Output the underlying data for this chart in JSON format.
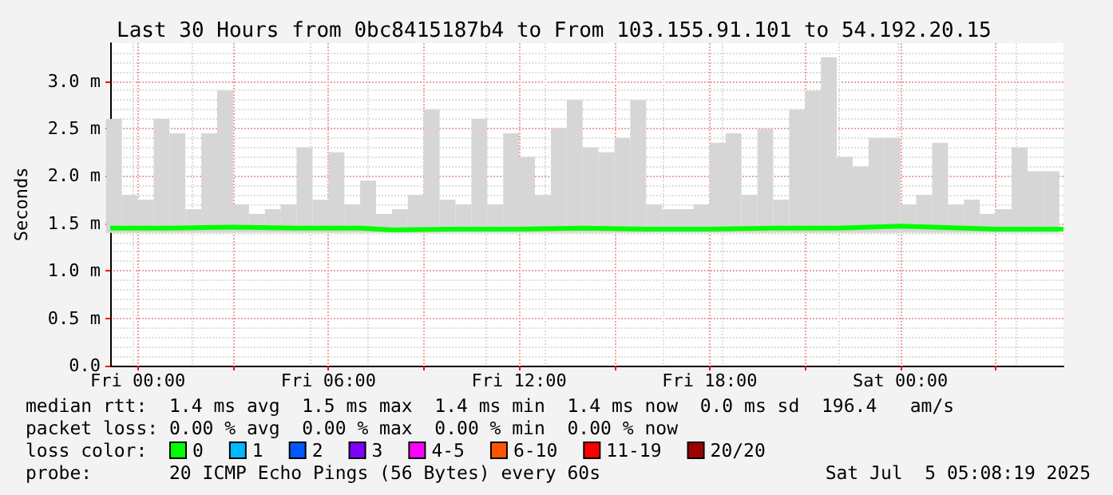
{
  "chart_data": {
    "type": "line",
    "title": "Last 30 Hours from 0bc8415187b4 to From 103.155.91.101 to 54.192.20.15",
    "ylabel": "Seconds",
    "xlim": [
      "2025-07-03T23:08",
      "2025-07-05T05:08"
    ],
    "xticks": [
      {
        "value": "2025-07-04T00:00",
        "label": "Fri 00:00"
      },
      {
        "value": "2025-07-04T03:00",
        "label": null
      },
      {
        "value": "2025-07-04T06:00",
        "label": "Fri 06:00"
      },
      {
        "value": "2025-07-04T09:00",
        "label": null
      },
      {
        "value": "2025-07-04T12:00",
        "label": "Fri 12:00"
      },
      {
        "value": "2025-07-04T15:00",
        "label": null
      },
      {
        "value": "2025-07-04T18:00",
        "label": "Fri 18:00"
      },
      {
        "value": "2025-07-04T21:00",
        "label": null
      },
      {
        "value": "2025-07-05T00:00",
        "label": "Sat 00:00"
      },
      {
        "value": "2025-07-05T03:00",
        "label": null
      }
    ],
    "ylim": [
      0,
      3.4
    ],
    "yticks": [
      {
        "value": 0,
        "label": "0.0"
      },
      {
        "value": 0.5,
        "label": "0.5 m"
      },
      {
        "value": 1,
        "label": "1.0 m"
      },
      {
        "value": 1.5,
        "label": "1.5 m"
      },
      {
        "value": 2,
        "label": "2.0 m"
      },
      {
        "value": 2.5,
        "label": "2.5 m"
      },
      {
        "value": 3,
        "label": "3.0 m"
      }
    ],
    "grid": true,
    "legend": "bottom left",
    "series": [
      {
        "type": "bar",
        "color": "#d6d6d6",
        "x": [
          "2025-07-03T23:15",
          "2025-07-03T23:45",
          "2025-07-04T00:15",
          "2025-07-04T00:45",
          "2025-07-04T01:15",
          "2025-07-04T01:45",
          "2025-07-04T02:15",
          "2025-07-04T02:45",
          "2025-07-04T03:15",
          "2025-07-04T03:45",
          "2025-07-04T04:15",
          "2025-07-04T04:45",
          "2025-07-04T05:15",
          "2025-07-04T05:45",
          "2025-07-04T06:15",
          "2025-07-04T06:45",
          "2025-07-04T07:15",
          "2025-07-04T07:45",
          "2025-07-04T08:15",
          "2025-07-04T08:45",
          "2025-07-04T09:15",
          "2025-07-04T09:45",
          "2025-07-04T10:15",
          "2025-07-04T10:45",
          "2025-07-04T11:15",
          "2025-07-04T11:45",
          "2025-07-04T12:15",
          "2025-07-04T12:45",
          "2025-07-04T13:15",
          "2025-07-04T13:45",
          "2025-07-04T14:15",
          "2025-07-04T14:45",
          "2025-07-04T15:15",
          "2025-07-04T15:45",
          "2025-07-04T16:15",
          "2025-07-04T16:45",
          "2025-07-04T17:15",
          "2025-07-04T17:45",
          "2025-07-04T18:15",
          "2025-07-04T18:45",
          "2025-07-04T19:15",
          "2025-07-04T19:45",
          "2025-07-04T20:15",
          "2025-07-04T20:45",
          "2025-07-04T21:15",
          "2025-07-04T21:45",
          "2025-07-04T22:15",
          "2025-07-04T22:45",
          "2025-07-04T23:15",
          "2025-07-04T23:45",
          "2025-07-05T00:15",
          "2025-07-05T00:45",
          "2025-07-05T01:15",
          "2025-07-05T01:45",
          "2025-07-05T02:15",
          "2025-07-05T02:45",
          "2025-07-05T03:15",
          "2025-07-05T03:45",
          "2025-07-05T04:15",
          "2025-07-05T04:45"
        ],
        "base": [
          1.4,
          1.4,
          1.4,
          1.4,
          1.4,
          1.4,
          1.4,
          1.4,
          1.4,
          1.4,
          1.4,
          1.4,
          1.4,
          1.4,
          1.4,
          1.4,
          1.4,
          1.4,
          1.4,
          1.4,
          1.4,
          1.4,
          1.4,
          1.4,
          1.4,
          1.4,
          1.4,
          1.4,
          1.4,
          1.4,
          1.4,
          1.4,
          1.4,
          1.4,
          1.4,
          1.4,
          1.4,
          1.4,
          1.4,
          1.4,
          1.4,
          1.4,
          1.4,
          1.4,
          1.4,
          1.4,
          1.4,
          1.4,
          1.4,
          1.4,
          1.4,
          1.4,
          1.4,
          1.4,
          1.4,
          1.4,
          1.4,
          1.4,
          1.4,
          1.4
        ],
        "values": [
          1.2,
          0.4,
          0.35,
          1.2,
          1.05,
          0.25,
          1.05,
          1.5,
          0.3,
          0.2,
          0.25,
          0.3,
          0.9,
          0.35,
          0.85,
          0.3,
          0.55,
          0.2,
          0.25,
          0.4,
          1.3,
          0.35,
          0.3,
          1.2,
          0.3,
          1.05,
          0.8,
          0.4,
          1.1,
          1.4,
          0.9,
          0.85,
          1.0,
          1.4,
          0.3,
          0.25,
          0.25,
          0.3,
          0.95,
          1.05,
          0.4,
          1.1,
          0.35,
          1.3,
          1.5,
          1.85,
          0.8,
          0.7,
          1.0,
          1.0,
          0.3,
          0.4,
          0.95,
          0.3,
          0.35,
          0.2,
          0.25,
          0.9,
          0.65,
          0.65
        ]
      },
      {
        "name": "0",
        "color": "#00ff00",
        "x": [
          "2025-07-03T23:08",
          "2025-07-04T01:00",
          "2025-07-04T03:00",
          "2025-07-04T05:00",
          "2025-07-04T07:00",
          "2025-07-04T08:00",
          "2025-07-04T10:00",
          "2025-07-04T12:00",
          "2025-07-04T14:00",
          "2025-07-04T16:00",
          "2025-07-04T18:00",
          "2025-07-04T20:00",
          "2025-07-04T22:00",
          "2025-07-05T00:00",
          "2025-07-05T01:00",
          "2025-07-05T03:00",
          "2025-07-05T05:08"
        ],
        "values": [
          1.45,
          1.45,
          1.46,
          1.45,
          1.45,
          1.43,
          1.44,
          1.44,
          1.45,
          1.44,
          1.44,
          1.45,
          1.45,
          1.47,
          1.46,
          1.44,
          1.44
        ]
      },
      {
        "name": "1",
        "color": "#00b8ff"
      },
      {
        "name": "2",
        "color": "#0059ff"
      },
      {
        "name": "3",
        "color": "#7e00ff"
      },
      {
        "name": "4-5",
        "color": "#ff00ff"
      },
      {
        "name": "6-10",
        "color": "#ff5500"
      },
      {
        "name": "11-19",
        "color": "#ff0000"
      },
      {
        "name": "20/20",
        "color": "#a10000"
      }
    ],
    "annotations": [
      "median rtt:  1.4 ms avg  1.5 ms max  1.4 ms min  1.4 ms now  0.0 ms sd  196.4   am/s",
      "packet loss: 0.00 % avg  0.00 % max  0.00 % min  0.00 % now",
      "loss color:",
      "probe:       20 ICMP Echo Pings (56 Bytes) every 60s",
      "Sat Jul  5 05:08:19 2025"
    ]
  }
}
